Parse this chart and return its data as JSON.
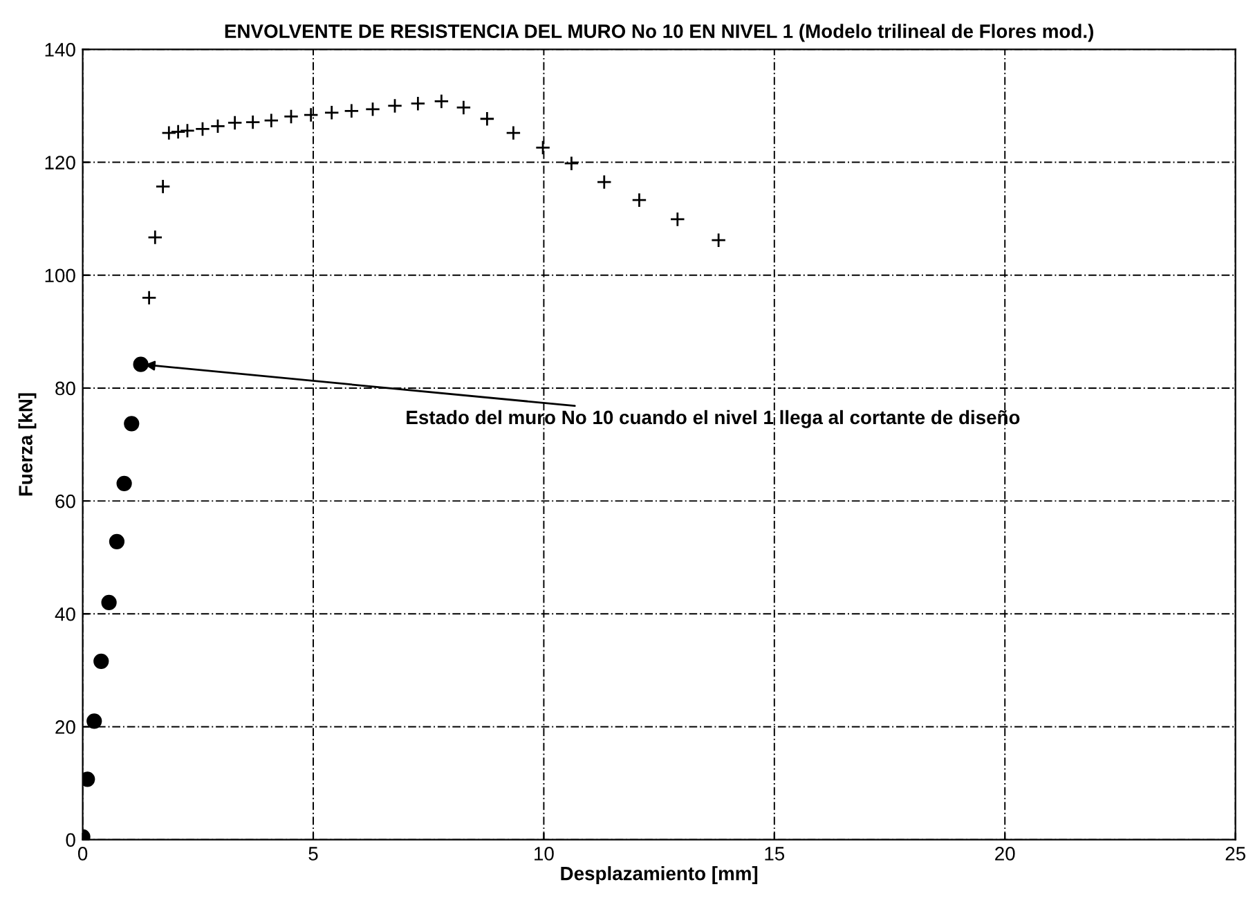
{
  "chart_data": {
    "type": "scatter",
    "title": "ENVOLVENTE DE RESISTENCIA DEL MURO No 10 EN NIVEL 1 (Modelo trilineal de Flores mod.)",
    "xlabel": "Desplazamiento [mm]",
    "ylabel": "Fuerza [kN]",
    "xlim": [
      0,
      25
    ],
    "ylim": [
      0,
      140
    ],
    "xticks": [
      0,
      5,
      10,
      15,
      20,
      25
    ],
    "yticks": [
      0,
      20,
      40,
      60,
      80,
      100,
      120,
      140
    ],
    "grid": true,
    "legend": false,
    "series": [
      {
        "color": "#000000",
        "marker": "circle",
        "x": [
          0.0,
          0.1,
          0.25,
          0.4,
          0.57,
          0.74,
          0.9,
          1.06,
          1.26
        ],
        "values": [
          0.5,
          10.7,
          21,
          31.6,
          42,
          52.8,
          63.1,
          73.7,
          84.2
        ]
      },
      {
        "color": "#000000",
        "marker": "cross",
        "x": [
          1.44,
          1.57,
          1.74,
          1.87,
          2.07,
          2.27,
          2.6,
          2.93,
          3.3,
          3.69,
          4.09,
          4.52,
          4.95,
          5.4,
          5.83,
          6.29,
          6.77,
          7.27,
          7.78,
          8.26,
          8.77,
          9.34,
          9.98,
          10.6,
          11.31,
          12.07,
          12.9,
          13.79
        ],
        "values": [
          96.0,
          106.7,
          115.7,
          125.2,
          125.4,
          125.6,
          125.9,
          126.4,
          127,
          127.1,
          127.4,
          128.1,
          128.4,
          128.8,
          129.1,
          129.4,
          130,
          130.4,
          130.8,
          129.7,
          127.7,
          125.2,
          122.6,
          119.8,
          116.5,
          113.3,
          109.9,
          106.2
        ]
      }
    ],
    "annotations": [
      {
        "text": "Estado del muro No 10 cuando el nivel 1 llega al cortante de diseño",
        "x": 1.26,
        "y": 84.2
      }
    ]
  }
}
